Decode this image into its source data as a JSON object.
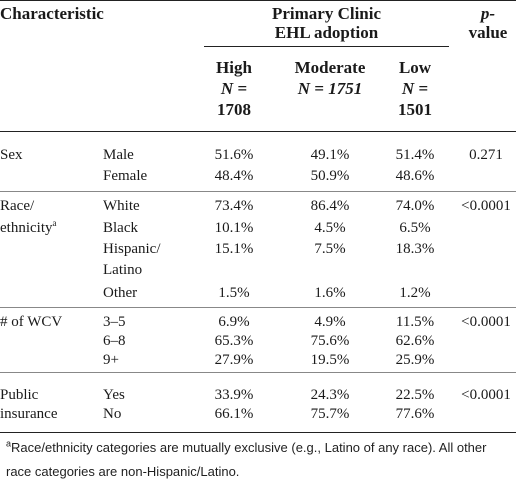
{
  "header": {
    "characteristic": "Characteristic",
    "group_title_line1": "Primary Clinic",
    "group_title_line2": "EHL adoption",
    "pvalue_line1": "p-",
    "pvalue_line2": "value",
    "high": {
      "name": "High",
      "n_line": "N =",
      "n": "1708"
    },
    "moderate": {
      "name": "Moderate",
      "n_line": "N = 1751"
    },
    "low": {
      "name": "Low",
      "n_line": "N =",
      "n": "1501"
    }
  },
  "sections": {
    "sex": {
      "label": "Sex",
      "pvalue": "0.271",
      "rows": [
        {
          "category": "Male",
          "high": "51.6%",
          "moderate": "49.1%",
          "low": "51.4%"
        },
        {
          "category": "Female",
          "high": "48.4%",
          "moderate": "50.9%",
          "low": "48.6%"
        }
      ]
    },
    "race": {
      "label_line1": "Race/",
      "label_line2": "ethnicity",
      "label_sup": "a",
      "pvalue": "<0.0001",
      "rows": [
        {
          "category": "White",
          "high": "73.4%",
          "moderate": "86.4%",
          "low": "74.0%"
        },
        {
          "category": "Black",
          "high": "10.1%",
          "moderate": "4.5%",
          "low": "6.5%"
        },
        {
          "category": "Hispanic/",
          "category_line2": "Latino",
          "high": "15.1%",
          "moderate": "7.5%",
          "low": "18.3%"
        },
        {
          "category": "Other",
          "high": "1.5%",
          "moderate": "1.6%",
          "low": "1.2%"
        }
      ]
    },
    "wcv": {
      "label": "# of WCV",
      "pvalue": "<0.0001",
      "rows": [
        {
          "category": "3–5",
          "high": "6.9%",
          "moderate": "4.9%",
          "low": "11.5%"
        },
        {
          "category": "6–8",
          "high": "65.3%",
          "moderate": "75.6%",
          "low": "62.6%"
        },
        {
          "category": "9+",
          "high": "27.9%",
          "moderate": "19.5%",
          "low": "25.9%"
        }
      ]
    },
    "insurance": {
      "label_line1": "Public",
      "label_line2": "insurance",
      "pvalue": "<0.0001",
      "rows": [
        {
          "category": "Yes",
          "high": "33.9%",
          "moderate": "24.3%",
          "low": "22.5%"
        },
        {
          "category": "No",
          "high": "66.1%",
          "moderate": "75.7%",
          "low": "77.6%"
        }
      ]
    }
  },
  "footnote": {
    "marker": "a",
    "text": "Race/ethnicity categories are mutually exclusive (e.g., Latino of any race). All other race categories are non-Hispanic/Latino."
  }
}
